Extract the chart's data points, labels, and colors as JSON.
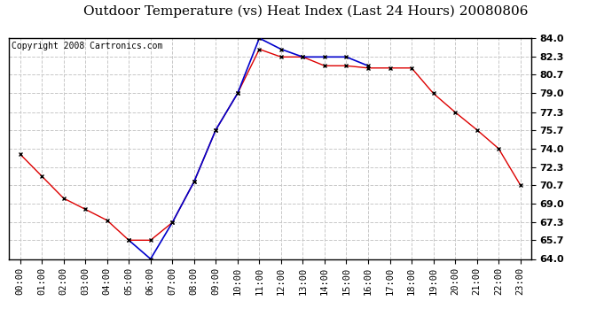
{
  "title": "Outdoor Temperature (vs) Heat Index (Last 24 Hours) 20080806",
  "copyright": "Copyright 2008 Cartronics.com",
  "hours": [
    "00:00",
    "01:00",
    "02:00",
    "03:00",
    "04:00",
    "05:00",
    "06:00",
    "07:00",
    "08:00",
    "09:00",
    "10:00",
    "11:00",
    "12:00",
    "13:00",
    "14:00",
    "15:00",
    "16:00",
    "17:00",
    "18:00",
    "19:00",
    "20:00",
    "21:00",
    "22:00",
    "23:00"
  ],
  "temp_red": [
    73.5,
    71.5,
    69.5,
    68.5,
    67.5,
    65.7,
    65.7,
    67.3,
    71.0,
    75.7,
    79.0,
    83.0,
    82.3,
    82.3,
    81.5,
    81.5,
    81.3,
    81.3,
    81.3,
    79.0,
    77.3,
    75.7,
    74.0,
    70.7
  ],
  "heat_blue_x": [
    5,
    6,
    7,
    8,
    9,
    10,
    11,
    12,
    13,
    14,
    15,
    16
  ],
  "heat_blue_y": [
    65.7,
    64.0,
    67.3,
    71.0,
    75.7,
    79.0,
    84.0,
    83.0,
    82.3,
    82.3,
    82.3,
    81.5
  ],
  "ylim": [
    64.0,
    84.0
  ],
  "yticks": [
    64.0,
    65.7,
    67.3,
    69.0,
    70.7,
    72.3,
    74.0,
    75.7,
    77.3,
    79.0,
    80.7,
    82.3,
    84.0
  ],
  "bg_color": "#ffffff",
  "grid_color": "#c8c8c8",
  "red_color": "#dd0000",
  "blue_color": "#0000cc",
  "title_fontsize": 11,
  "copyright_fontsize": 7,
  "tick_fontsize": 7.5,
  "ytick_fontsize": 8
}
